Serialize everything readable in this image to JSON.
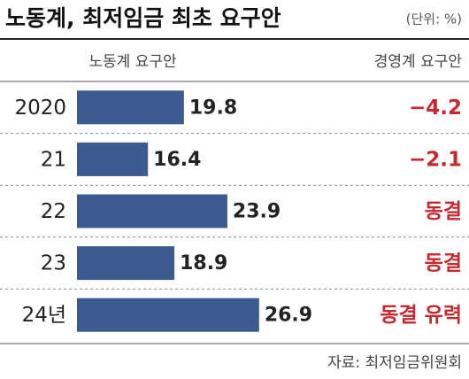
{
  "chart_data": {
    "type": "bar",
    "orientation": "horizontal",
    "title": "노동계, 최저임금 최초 요구안",
    "unit": "(단위: %)",
    "column_headers": [
      "노동계 요구안",
      "경영계 요구안"
    ],
    "categories": [
      "2020",
      "21",
      "22",
      "23",
      "24년"
    ],
    "values": [
      19.8,
      16.4,
      23.9,
      18.9,
      26.9
    ],
    "employer_proposals": [
      "−4.2",
      "−2.1",
      "동결",
      "동결",
      "동결 유력"
    ],
    "color": "#3d5b90",
    "xlim": [
      9.7,
      27.5
    ],
    "source": "자료: 최저임금위원회"
  }
}
